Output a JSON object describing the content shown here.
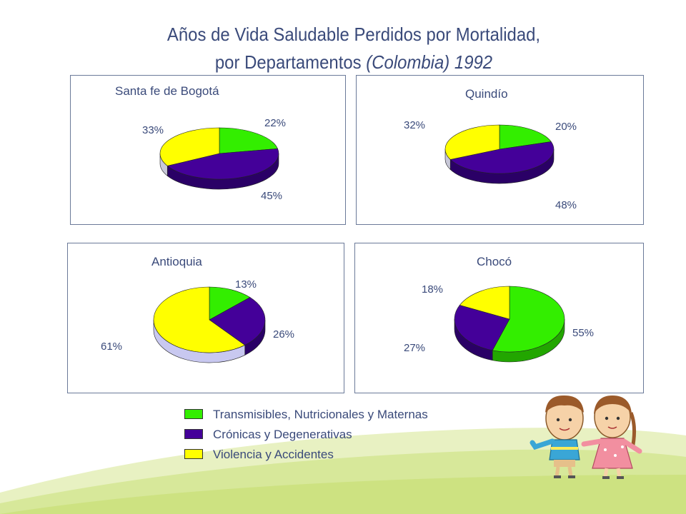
{
  "title": {
    "line1": "Años de Vida Saludable Perdidos por Mortalidad,",
    "line2_prefix": "por Departamentos ",
    "line2_italic": "(Colombia)  1992"
  },
  "colors": {
    "transmisibles": "#33ee00",
    "cronicas": "#440099",
    "violencia": "#ffff00"
  },
  "legend": [
    {
      "label": "Transmisibles, Nutricionales y Maternas",
      "color": "#33ee00"
    },
    {
      "label": "Crónicas y Degenerativas",
      "color": "#440099"
    },
    {
      "label": "Violencia y Accidentes",
      "color": "#ffff00"
    }
  ],
  "chart_data": [
    {
      "type": "pie",
      "title": "Santa fe de Bogotá",
      "categories": [
        "Transmisibles, Nutricionales y Maternas",
        "Crónicas y Degenerativas",
        "Violencia y Accidentes"
      ],
      "values": [
        22,
        45,
        33
      ],
      "labels": [
        "22%",
        "45%",
        "33%"
      ]
    },
    {
      "type": "pie",
      "title": "Quindío",
      "categories": [
        "Transmisibles, Nutricionales y Maternas",
        "Crónicas y Degenerativas",
        "Violencia y Accidentes"
      ],
      "values": [
        20,
        48,
        32
      ],
      "labels": [
        "20%",
        "48%",
        "32%"
      ]
    },
    {
      "type": "pie",
      "title": "Antioquia",
      "categories": [
        "Transmisibles, Nutricionales y Maternas",
        "Crónicas y Degenerativas",
        "Violencia y Accidentes"
      ],
      "values": [
        13,
        26,
        61
      ],
      "labels": [
        "13%",
        "26%",
        "61%"
      ]
    },
    {
      "type": "pie",
      "title": "Chocó",
      "categories": [
        "Transmisibles, Nutricionales y Maternas",
        "Crónicas y Degenerativas",
        "Violencia y Accidentes"
      ],
      "values": [
        55,
        27,
        18
      ],
      "labels": [
        "55%",
        "27%",
        "18%"
      ]
    }
  ]
}
